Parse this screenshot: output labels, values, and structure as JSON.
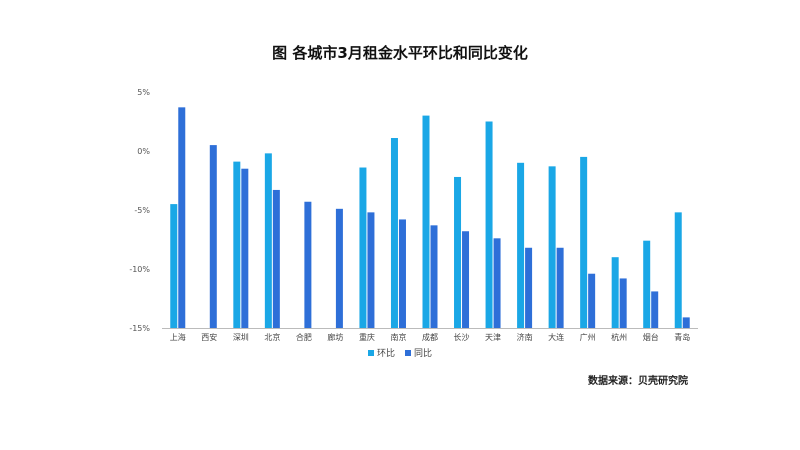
{
  "chart_data": {
    "type": "bar",
    "title": "图 各城市3月租金水平环比和同比变化",
    "categories": [
      "上海",
      "西安",
      "深圳",
      "北京",
      "合肥",
      "廊坊",
      "重庆",
      "南京",
      "成都",
      "长沙",
      "天津",
      "济南",
      "大连",
      "广州",
      "杭州",
      "烟台",
      "青岛"
    ],
    "series": [
      {
        "name": "环比",
        "color": "#1aa7e6",
        "values": [
          -4.5,
          null,
          -0.9,
          -0.2,
          null,
          null,
          -1.4,
          1.1,
          3.0,
          -2.2,
          2.5,
          -1.0,
          -1.3,
          -0.5,
          -9.0,
          -7.6,
          -5.2
        ]
      },
      {
        "name": "同比",
        "color": "#2e6fd8",
        "values": [
          3.7,
          0.5,
          -1.5,
          -3.3,
          -4.3,
          -4.9,
          -5.2,
          -5.8,
          -6.3,
          -6.8,
          -7.4,
          -8.2,
          -8.2,
          -10.4,
          -10.8,
          -11.9,
          -14.1
        ]
      }
    ],
    "y_ticks": [
      5,
      0,
      -5,
      -10,
      -15
    ],
    "y_tick_labels": [
      "5%",
      "0%",
      "-5%",
      "-10%",
      "-15%"
    ],
    "ylim": [
      -15,
      5
    ],
    "legend_position": "bottom"
  },
  "source_text": "数据来源：贝壳研究院"
}
